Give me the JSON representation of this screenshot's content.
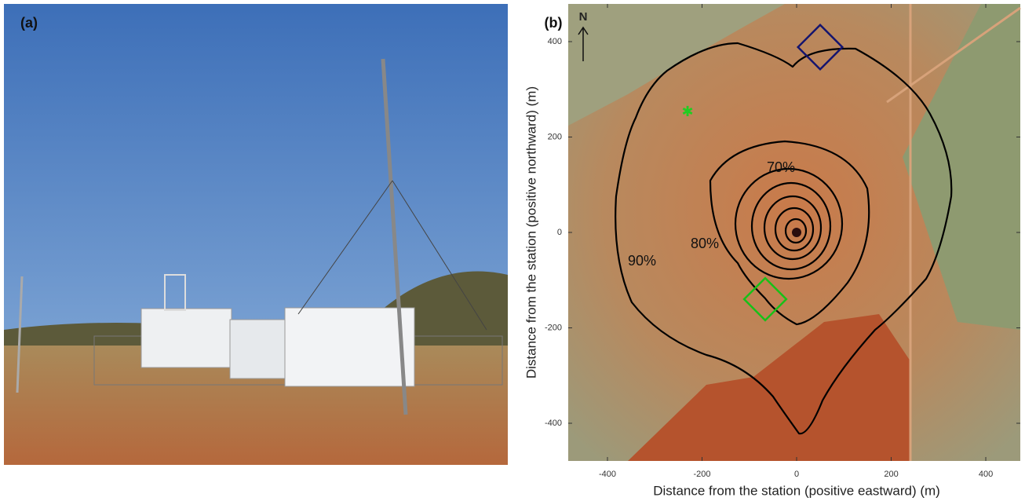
{
  "panel_a": {
    "label": "(a)"
  },
  "panel_b": {
    "label": "(b)",
    "north": "N",
    "xlabel": "Distance from the station (positive eastward) (m)",
    "ylabel": "Distance from the station (positive northward) (m)",
    "xlim": [
      -483,
      473
    ],
    "ylim": [
      -479,
      479
    ],
    "xticks": [
      -400,
      -200,
      0,
      200,
      400
    ],
    "yticks": [
      -400,
      -200,
      0,
      200,
      400
    ],
    "contour_labels": [
      "70%",
      "80%",
      "90%"
    ]
  }
}
